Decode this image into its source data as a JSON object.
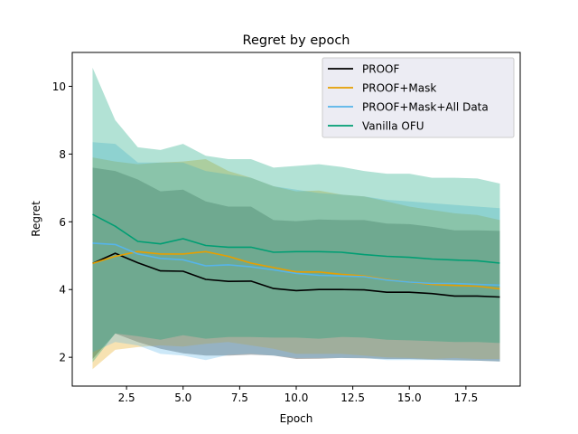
{
  "chart_data": {
    "type": "line",
    "title": "Regret by epoch",
    "xlabel": "Epoch",
    "ylabel": "Regret",
    "xlim": [
      0.1,
      19.9
    ],
    "ylim": [
      1.15,
      11.0
    ],
    "xticks": [
      2.5,
      5.0,
      7.5,
      10.0,
      12.5,
      15.0,
      17.5
    ],
    "xtick_labels": [
      "2.5",
      "5.0",
      "7.5",
      "10.0",
      "12.5",
      "15.0",
      "17.5"
    ],
    "yticks": [
      2,
      4,
      6,
      8,
      10
    ],
    "ytick_labels": [
      "2",
      "4",
      "6",
      "8",
      "10"
    ],
    "grid": false,
    "legend_position": "top-right",
    "x": [
      1,
      2,
      3,
      4,
      5,
      6,
      7,
      8,
      9,
      10,
      11,
      12,
      13,
      14,
      15,
      16,
      17,
      18,
      19
    ],
    "series": [
      {
        "name": "PROOF",
        "color": "#000000",
        "values": [
          4.77,
          5.07,
          4.79,
          4.55,
          4.54,
          4.3,
          4.24,
          4.25,
          4.03,
          3.97,
          4.0,
          4.0,
          3.99,
          3.92,
          3.92,
          3.88,
          3.81,
          3.81,
          3.78
        ],
        "upper": [
          7.6,
          7.5,
          7.25,
          6.9,
          6.95,
          6.6,
          6.45,
          6.45,
          6.05,
          6.02,
          6.07,
          6.05,
          6.05,
          5.95,
          5.93,
          5.85,
          5.75,
          5.75,
          5.73
        ],
        "lower": [
          1.95,
          2.7,
          2.45,
          2.25,
          2.12,
          2.05,
          2.05,
          2.08,
          2.05,
          1.95,
          1.96,
          1.98,
          1.97,
          1.95,
          1.95,
          1.93,
          1.92,
          1.9,
          1.88
        ]
      },
      {
        "name": "PROOF+Mask",
        "color": "#e69f00",
        "values": [
          4.77,
          4.98,
          5.12,
          5.05,
          5.05,
          5.12,
          4.98,
          4.78,
          4.65,
          4.52,
          4.52,
          4.45,
          4.4,
          4.3,
          4.22,
          4.15,
          4.12,
          4.1,
          4.02
        ],
        "upper": [
          7.9,
          7.78,
          7.7,
          7.75,
          7.78,
          7.85,
          7.5,
          7.3,
          7.05,
          6.9,
          6.92,
          6.8,
          6.75,
          6.6,
          6.45,
          6.35,
          6.25,
          6.2,
          6.05
        ],
        "lower": [
          1.65,
          2.22,
          2.3,
          2.35,
          2.32,
          2.4,
          2.45,
          2.35,
          2.25,
          2.1,
          2.1,
          2.1,
          2.05,
          2.0,
          1.98,
          1.95,
          1.98,
          1.95,
          1.95
        ]
      },
      {
        "name": "PROOF+Mask+All Data",
        "color": "#56b4e9",
        "values": [
          5.37,
          5.33,
          5.05,
          4.92,
          4.88,
          4.7,
          4.73,
          4.67,
          4.58,
          4.48,
          4.42,
          4.4,
          4.38,
          4.28,
          4.22,
          4.18,
          4.18,
          4.15,
          4.13
        ],
        "upper": [
          8.35,
          8.3,
          7.75,
          7.75,
          7.75,
          7.5,
          7.4,
          7.3,
          7.05,
          6.95,
          6.85,
          6.8,
          6.75,
          6.65,
          6.6,
          6.55,
          6.5,
          6.45,
          6.4
        ],
        "lower": [
          2.15,
          2.45,
          2.35,
          2.1,
          2.05,
          1.92,
          2.07,
          2.1,
          2.05,
          1.98,
          1.98,
          1.98,
          1.98,
          1.92,
          1.92,
          1.92,
          1.9,
          1.9,
          1.88
        ]
      },
      {
        "name": "Vanilla OFU",
        "color": "#009e73",
        "values": [
          6.22,
          5.87,
          5.42,
          5.35,
          5.5,
          5.3,
          5.25,
          5.25,
          5.1,
          5.12,
          5.12,
          5.1,
          5.03,
          4.98,
          4.95,
          4.9,
          4.87,
          4.85,
          4.78
        ],
        "upper": [
          10.55,
          9.0,
          8.2,
          8.12,
          8.3,
          7.95,
          7.85,
          7.85,
          7.6,
          7.65,
          7.7,
          7.62,
          7.5,
          7.42,
          7.42,
          7.3,
          7.3,
          7.28,
          7.13
        ],
        "lower": [
          1.85,
          2.7,
          2.62,
          2.52,
          2.65,
          2.55,
          2.6,
          2.6,
          2.58,
          2.58,
          2.55,
          2.6,
          2.58,
          2.52,
          2.5,
          2.48,
          2.45,
          2.45,
          2.42
        ]
      }
    ]
  }
}
